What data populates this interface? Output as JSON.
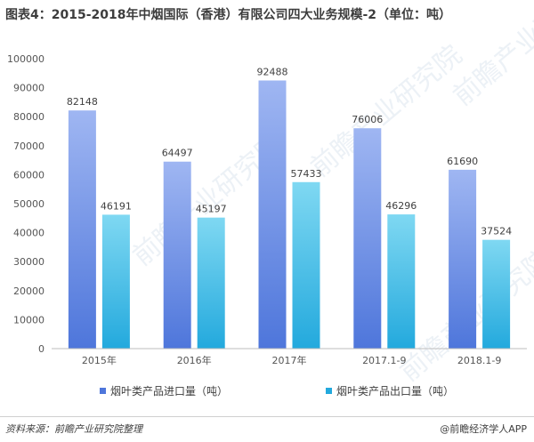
{
  "title": "图表4：2015-2018年中烟国际（香港）有限公司四大业务规模-2（单位：吨）",
  "source": "资料来源：前瞻产业研究院整理",
  "brand": "@前瞻经济学人APP",
  "watermark": "前瞻产业研究院",
  "colors": {
    "import_top": "#9fb6f2",
    "import_bottom": "#4e76db",
    "export_top": "#7fd8f2",
    "export_bottom": "#23a9dd",
    "axis_text": "#555555",
    "grid": "#e0e0e0"
  },
  "chart_data": {
    "type": "bar",
    "categories": [
      "2015年",
      "2016年",
      "2017年",
      "2017.1-9",
      "2018.1-9"
    ],
    "series": [
      {
        "name": "烟叶类产品进口量（吨）",
        "values": [
          82148,
          64497,
          92488,
          76006,
          61690
        ]
      },
      {
        "name": "烟叶类产品出口量（吨）",
        "values": [
          46191,
          45197,
          57433,
          46296,
          37524
        ]
      }
    ],
    "ylim": [
      0,
      100000
    ],
    "yticks": [
      0,
      10000,
      20000,
      30000,
      40000,
      50000,
      60000,
      70000,
      80000,
      90000,
      100000
    ],
    "grid": false,
    "legend_position": "bottom"
  }
}
